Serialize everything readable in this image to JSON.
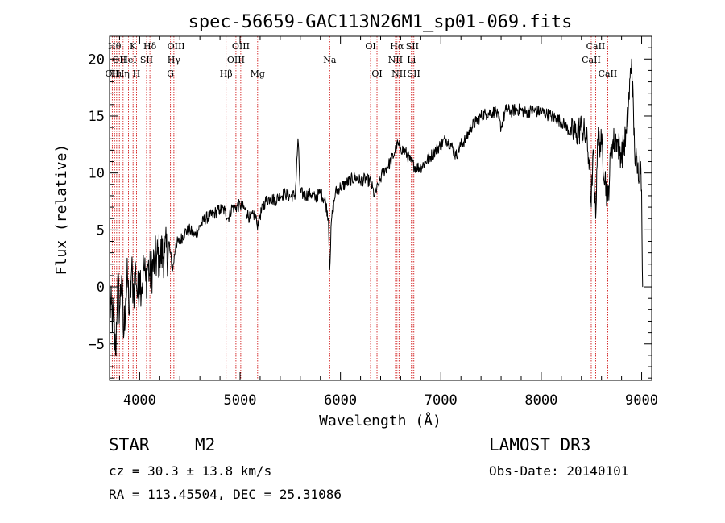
{
  "chart_data": {
    "type": "line",
    "title": "spec-56659-GAC113N26M1_sp01-069.fits",
    "xlabel": "Wavelength (Å)",
    "ylabel": "Flux (relative)",
    "xlim": [
      3700,
      9100
    ],
    "ylim": [
      -8.2,
      22
    ],
    "grid": false,
    "x_ticks": [
      {
        "value": 4000,
        "label": "4000"
      },
      {
        "value": 5000,
        "label": "5000"
      },
      {
        "value": 6000,
        "label": "6000"
      },
      {
        "value": 7000,
        "label": "7000"
      },
      {
        "value": 8000,
        "label": "8000"
      },
      {
        "value": 9000,
        "label": "9000"
      }
    ],
    "y_ticks": [
      {
        "value": -5,
        "label": "−5"
      },
      {
        "value": 0,
        "label": "0"
      },
      {
        "value": 5,
        "label": "5"
      },
      {
        "value": 10,
        "label": "10"
      },
      {
        "value": 15,
        "label": "15"
      },
      {
        "value": 20,
        "label": "20"
      }
    ],
    "series": [
      {
        "name": "spectrum",
        "color": "#000000",
        "points": [
          [
            3700,
            -1.5
          ],
          [
            3740,
            -3.0
          ],
          [
            3760,
            -6.0
          ],
          [
            3780,
            0.5
          ],
          [
            3800,
            -2.0
          ],
          [
            3820,
            1.0
          ],
          [
            3840,
            -4.5
          ],
          [
            3860,
            -1.0
          ],
          [
            3880,
            0.8
          ],
          [
            3900,
            -2.5
          ],
          [
            3920,
            1.5
          ],
          [
            3940,
            -0.5
          ],
          [
            3960,
            1.8
          ],
          [
            3980,
            -1.0
          ],
          [
            4000,
            1.2
          ],
          [
            4020,
            0.0
          ],
          [
            4040,
            1.8
          ],
          [
            4060,
            0.5
          ],
          [
            4080,
            2.0
          ],
          [
            4100,
            1.0
          ],
          [
            4150,
            2.2
          ],
          [
            4200,
            2.8
          ],
          [
            4250,
            3.0
          ],
          [
            4300,
            3.2
          ],
          [
            4330,
            1.5
          ],
          [
            4360,
            3.8
          ],
          [
            4400,
            4.0
          ],
          [
            4450,
            4.8
          ],
          [
            4500,
            5.0
          ],
          [
            4550,
            4.5
          ],
          [
            4600,
            5.3
          ],
          [
            4650,
            6.0
          ],
          [
            4700,
            6.2
          ],
          [
            4750,
            6.5
          ],
          [
            4800,
            6.8
          ],
          [
            4850,
            6.7
          ],
          [
            4880,
            6.0
          ],
          [
            4920,
            7.0
          ],
          [
            4960,
            7.0
          ],
          [
            5000,
            7.2
          ],
          [
            5050,
            6.8
          ],
          [
            5100,
            6.0
          ],
          [
            5150,
            6.4
          ],
          [
            5170,
            5.4
          ],
          [
            5200,
            6.3
          ],
          [
            5250,
            7.5
          ],
          [
            5300,
            7.8
          ],
          [
            5350,
            7.6
          ],
          [
            5400,
            8.0
          ],
          [
            5450,
            8.2
          ],
          [
            5500,
            7.9
          ],
          [
            5550,
            8.1
          ],
          [
            5577,
            13.0
          ],
          [
            5600,
            8.3
          ],
          [
            5650,
            8.0
          ],
          [
            5700,
            8.2
          ],
          [
            5750,
            7.8
          ],
          [
            5800,
            8.3
          ],
          [
            5850,
            7.5
          ],
          [
            5880,
            6.0
          ],
          [
            5893,
            1.5
          ],
          [
            5910,
            5.8
          ],
          [
            5950,
            8.3
          ],
          [
            6000,
            8.8
          ],
          [
            6050,
            9.0
          ],
          [
            6100,
            9.4
          ],
          [
            6150,
            9.6
          ],
          [
            6200,
            9.3
          ],
          [
            6250,
            9.5
          ],
          [
            6300,
            9.2
          ],
          [
            6340,
            8.0
          ],
          [
            6380,
            9.0
          ],
          [
            6420,
            10.0
          ],
          [
            6460,
            10.5
          ],
          [
            6500,
            11.0
          ],
          [
            6540,
            11.8
          ],
          [
            6563,
            12.5
          ],
          [
            6600,
            12.2
          ],
          [
            6650,
            11.8
          ],
          [
            6700,
            11.0
          ],
          [
            6750,
            10.5
          ],
          [
            6800,
            10.5
          ],
          [
            6850,
            11.0
          ],
          [
            6900,
            11.5
          ],
          [
            6950,
            12.0
          ],
          [
            7000,
            12.5
          ],
          [
            7050,
            13.0
          ],
          [
            7100,
            12.5
          ],
          [
            7150,
            11.5
          ],
          [
            7200,
            12.5
          ],
          [
            7250,
            13.0
          ],
          [
            7300,
            14.0
          ],
          [
            7350,
            14.5
          ],
          [
            7400,
            15.0
          ],
          [
            7450,
            15.2
          ],
          [
            7500,
            15.3
          ],
          [
            7550,
            15.4
          ],
          [
            7600,
            14.0
          ],
          [
            7650,
            15.6
          ],
          [
            7700,
            15.4
          ],
          [
            7750,
            15.6
          ],
          [
            7800,
            15.5
          ],
          [
            7850,
            15.3
          ],
          [
            7900,
            15.5
          ],
          [
            7950,
            15.4
          ],
          [
            8000,
            15.4
          ],
          [
            8050,
            15.2
          ],
          [
            8100,
            15.0
          ],
          [
            8150,
            14.8
          ],
          [
            8200,
            14.5
          ],
          [
            8250,
            14.0
          ],
          [
            8300,
            13.5
          ],
          [
            8350,
            13.5
          ],
          [
            8400,
            14.0
          ],
          [
            8450,
            13.0
          ],
          [
            8480,
            11.0
          ],
          [
            8498,
            7.0
          ],
          [
            8520,
            12.0
          ],
          [
            8542,
            6.0
          ],
          [
            8560,
            13.0
          ],
          [
            8600,
            12.5
          ],
          [
            8662,
            7.5
          ],
          [
            8700,
            12.5
          ],
          [
            8750,
            13.0
          ],
          [
            8800,
            11.5
          ],
          [
            8850,
            13.5
          ],
          [
            8900,
            20.0
          ],
          [
            8930,
            12.0
          ],
          [
            8960,
            10.0
          ],
          [
            8990,
            11.0
          ],
          [
            9000,
            8.5
          ],
          [
            9010,
            0.0
          ]
        ]
      }
    ],
    "line_markers": [
      {
        "wavelength": 3727,
        "label": "OII",
        "row": 2
      },
      {
        "wavelength": 3750,
        "label": "Hθ",
        "row": 0
      },
      {
        "wavelength": 3771,
        "label": "Hι",
        "row": 2
      },
      {
        "wavelength": 3798,
        "label": "OII",
        "row": 1
      },
      {
        "wavelength": 3835,
        "label": "Hη",
        "row": 2
      },
      {
        "wavelength": 3889,
        "label": "HeI",
        "row": 1
      },
      {
        "wavelength": 3934,
        "label": "K",
        "row": 0
      },
      {
        "wavelength": 3968,
        "label": "H",
        "row": 2
      },
      {
        "wavelength": 4069,
        "label": "SII",
        "row": 1
      },
      {
        "wavelength": 4102,
        "label": "Hδ",
        "row": 0
      },
      {
        "wavelength": 4307,
        "label": "G",
        "row": 2
      },
      {
        "wavelength": 4341,
        "label": "Hγ",
        "row": 1
      },
      {
        "wavelength": 4363,
        "label": "OIII",
        "row": 0
      },
      {
        "wavelength": 4861,
        "label": "Hβ",
        "row": 2
      },
      {
        "wavelength": 4959,
        "label": "OIII",
        "row": 1
      },
      {
        "wavelength": 5007,
        "label": "OIII",
        "row": 0
      },
      {
        "wavelength": 5175,
        "label": "Mg",
        "row": 2
      },
      {
        "wavelength": 5893,
        "label": "Na",
        "row": 1
      },
      {
        "wavelength": 6300,
        "label": "OI",
        "row": 0
      },
      {
        "wavelength": 6364,
        "label": "OI",
        "row": 2
      },
      {
        "wavelength": 6548,
        "label": "NII",
        "row": 1
      },
      {
        "wavelength": 6563,
        "label": "Hα",
        "row": 0
      },
      {
        "wavelength": 6583,
        "label": "NII",
        "row": 2
      },
      {
        "wavelength": 6707,
        "label": "Li",
        "row": 1
      },
      {
        "wavelength": 6716,
        "label": "SII",
        "row": 0
      },
      {
        "wavelength": 6731,
        "label": "SII",
        "row": 2
      },
      {
        "wavelength": 8498,
        "label": "CaII",
        "row": 1
      },
      {
        "wavelength": 8542,
        "label": "CaII",
        "row": 0
      },
      {
        "wavelength": 8662,
        "label": "CaII",
        "row": 2
      }
    ],
    "line_marker_color": "#cc0000"
  },
  "info": {
    "object_class": "STAR",
    "subclass": "M2",
    "survey": "LAMOST DR3",
    "cz": "cz = 30.3 ± 13.8 km/s",
    "obs_date": "Obs-Date: 20140101",
    "coords": "RA = 113.45504, DEC =  25.31086"
  }
}
